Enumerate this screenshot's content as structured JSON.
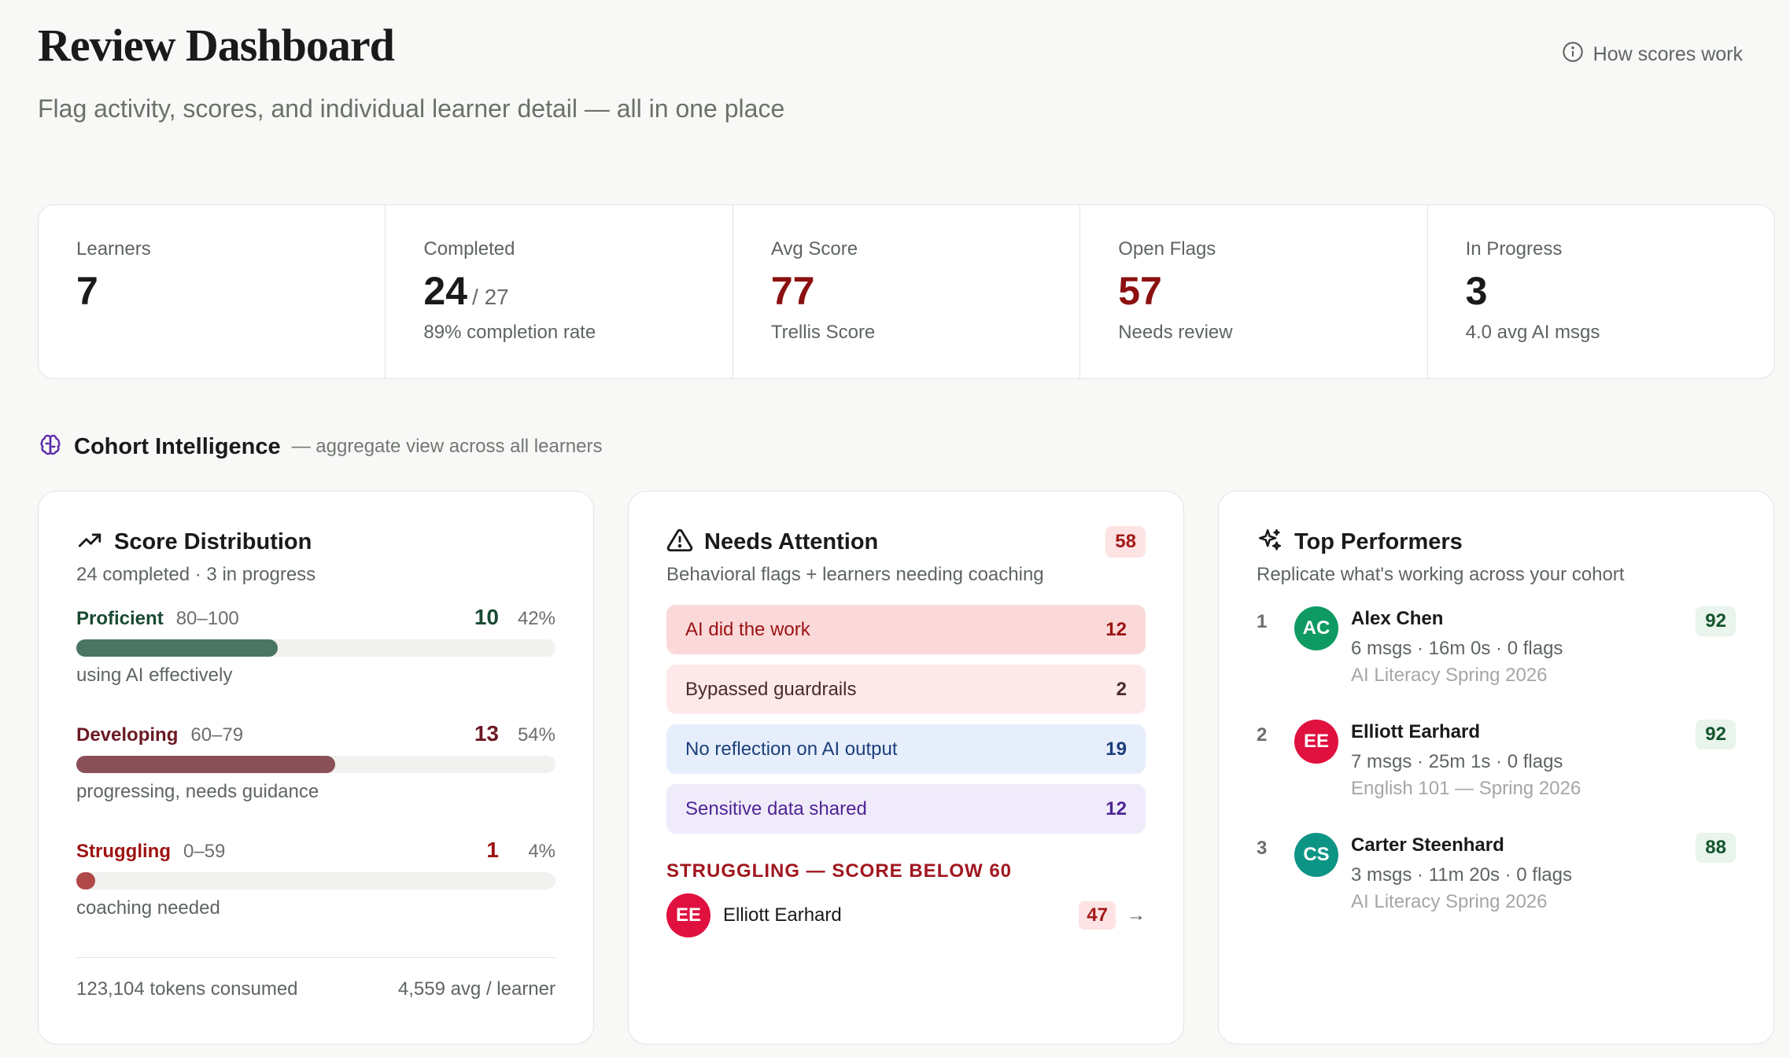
{
  "header": {
    "title": "Review Dashboard",
    "subtitle": "Flag activity, scores, and individual learner detail — all in one place",
    "help_link": "How scores work"
  },
  "stats": [
    {
      "label": "Learners",
      "value": "7",
      "total": "",
      "sub": ""
    },
    {
      "label": "Completed",
      "value": "24",
      "total": "/ 27",
      "sub": "89% completion rate"
    },
    {
      "label": "Avg Score",
      "value": "77",
      "total": "",
      "sub": "Trellis Score"
    },
    {
      "label": "Open Flags",
      "value": "57",
      "total": "",
      "sub": "Needs review"
    },
    {
      "label": "In Progress",
      "value": "3",
      "total": "",
      "sub": "4.0 avg AI msgs"
    }
  ],
  "cohort": {
    "title": "Cohort Intelligence",
    "note": "— aggregate view across all learners"
  },
  "distribution": {
    "title": "Score Distribution",
    "subtitle": "24 completed · 3 in progress",
    "rows": [
      {
        "name": "Proficient",
        "range": "80–100",
        "count": "10",
        "pct": "42%",
        "fraction": 0.42,
        "desc": "using AI effectively",
        "color": "#4a7562",
        "text_color": "#1a4a33"
      },
      {
        "name": "Developing",
        "range": "60–79",
        "count": "13",
        "pct": "54%",
        "fraction": 0.54,
        "desc": "progressing, needs guidance",
        "color": "#8a5058",
        "text_color": "#6b1a24"
      },
      {
        "name": "Struggling",
        "range": "0–59",
        "count": "1",
        "pct": "4%",
        "fraction": 0.04,
        "desc": "coaching needed",
        "color": "#b04848",
        "text_color": "#9e1212"
      }
    ],
    "tokens": "123,104 tokens consumed",
    "avg": "4,559 avg / learner"
  },
  "attention": {
    "title": "Needs Attention",
    "badge": "58",
    "subtitle": "Behavioral flags + learners needing coaching",
    "flags": [
      {
        "label": "AI did the work",
        "count": "12",
        "bg": "#fcd9d9",
        "fg": "#9a1313"
      },
      {
        "label": "Bypassed guardrails",
        "count": "2",
        "bg": "#fde9e9",
        "fg": "#4a2a2a"
      },
      {
        "label": "No reflection on AI output",
        "count": "19",
        "bg": "#e6eefc",
        "fg": "#1b3f7a"
      },
      {
        "label": "Sensitive data shared",
        "count": "12",
        "bg": "#f0ebfb",
        "fg": "#4f2595"
      }
    ],
    "struggling_title": "STRUGGLING — SCORE BELOW 60",
    "struggling": [
      {
        "initials": "EE",
        "name": "Elliott Earhard",
        "score": "47",
        "avatar_color": "#e0103f"
      }
    ]
  },
  "performers": {
    "title": "Top Performers",
    "subtitle": "Replicate what's working across your cohort",
    "items": [
      {
        "rank": "1",
        "initials": "AC",
        "name": "Alex Chen",
        "meta": "6 msgs · 16m 0s · 0 flags",
        "course": "AI Literacy Spring 2026",
        "score": "92",
        "avatar_color": "#0f9a63"
      },
      {
        "rank": "2",
        "initials": "EE",
        "name": "Elliott Earhard",
        "meta": "7 msgs · 25m 1s · 0 flags",
        "course": "English 101 — Spring 2026",
        "score": "92",
        "avatar_color": "#e0103f"
      },
      {
        "rank": "3",
        "initials": "CS",
        "name": "Carter Steenhard",
        "meta": "3 msgs · 11m 20s · 0 flags",
        "course": "AI Literacy Spring 2026",
        "score": "88",
        "avatar_color": "#0c9485"
      }
    ]
  },
  "icons": {
    "help": "info-circle-icon",
    "cohort": "brain-icon",
    "distribution": "trending-up-icon",
    "attention": "warning-triangle-icon",
    "performers": "sparkles-icon",
    "row_arrow": "arrow-right-icon"
  },
  "colors": {
    "accent_purple": "#5b2aa8",
    "flag_red": "#8b1010",
    "chip_red_bg": "#fde3e3",
    "score_green_bg": "#e8f4ec"
  }
}
